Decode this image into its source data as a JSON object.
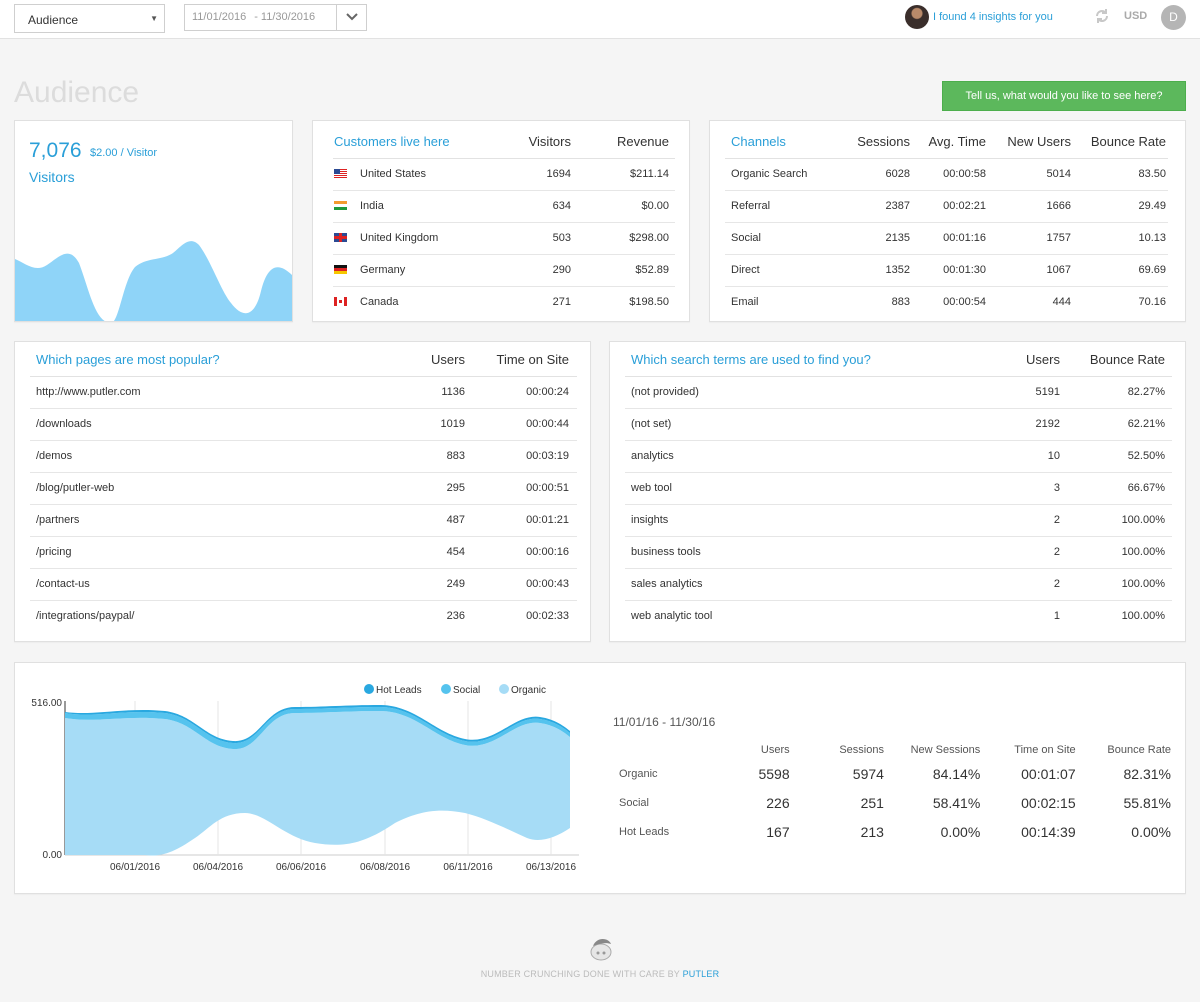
{
  "topbar": {
    "report_select": "Audience",
    "date_start": "11/01/2016",
    "date_end": "11/30/2016",
    "insights_text": "I found 4 insights for you",
    "currency": "USD",
    "user_initial": "D"
  },
  "page": {
    "title": "Audience",
    "feedback_button": "Tell us, what would you like to see here?"
  },
  "visitors": {
    "count": "7,076",
    "per_visitor": "$2.00 / Visitor",
    "label": "Visitors"
  },
  "countries": {
    "headers": [
      "Customers live here",
      "Visitors",
      "Revenue"
    ],
    "rows": [
      {
        "flag": "us-flag-icon",
        "name": "United States",
        "visitors": "1694",
        "revenue": "$211.14"
      },
      {
        "flag": "india-flag-icon",
        "name": "India",
        "visitors": "634",
        "revenue": "$0.00"
      },
      {
        "flag": "uk-flag-icon",
        "name": "United Kingdom",
        "visitors": "503",
        "revenue": "$298.00"
      },
      {
        "flag": "germany-flag-icon",
        "name": "Germany",
        "visitors": "290",
        "revenue": "$52.89"
      },
      {
        "flag": "canada-flag-icon",
        "name": "Canada",
        "visitors": "271",
        "revenue": "$198.50"
      }
    ]
  },
  "channels": {
    "headers": [
      "Channels",
      "Sessions",
      "Avg. Time",
      "New Users",
      "Bounce Rate"
    ],
    "rows": [
      {
        "name": "Organic Search",
        "sessions": "6028",
        "avg_time": "00:00:58",
        "new_users": "5014",
        "bounce": "83.50"
      },
      {
        "name": "Referral",
        "sessions": "2387",
        "avg_time": "00:02:21",
        "new_users": "1666",
        "bounce": "29.49"
      },
      {
        "name": "Social",
        "sessions": "2135",
        "avg_time": "00:01:16",
        "new_users": "1757",
        "bounce": "10.13"
      },
      {
        "name": "Direct",
        "sessions": "1352",
        "avg_time": "00:01:30",
        "new_users": "1067",
        "bounce": "69.69"
      },
      {
        "name": "Email",
        "sessions": "883",
        "avg_time": "00:00:54",
        "new_users": "444",
        "bounce": "70.16"
      }
    ]
  },
  "pages": {
    "headers": [
      "Which pages are most popular?",
      "Users",
      "Time on Site"
    ],
    "rows": [
      {
        "page": "http://www.putler.com",
        "users": "1136",
        "time": "00:00:24"
      },
      {
        "page": "/downloads",
        "users": "1019",
        "time": "00:00:44"
      },
      {
        "page": "/demos",
        "users": "883",
        "time": "00:03:19"
      },
      {
        "page": "/blog/putler-web",
        "users": "295",
        "time": "00:00:51"
      },
      {
        "page": "/partners",
        "users": "487",
        "time": "00:01:21"
      },
      {
        "page": "/pricing",
        "users": "454",
        "time": "00:00:16"
      },
      {
        "page": "/contact-us",
        "users": "249",
        "time": "00:00:43"
      },
      {
        "page": "/integrations/paypal/",
        "users": "236",
        "time": "00:02:33"
      }
    ]
  },
  "search_terms": {
    "headers": [
      "Which search terms are used to find you?",
      "Users",
      "Bounce Rate"
    ],
    "rows": [
      {
        "term": "(not provided)",
        "users": "5191",
        "bounce": "82.27%"
      },
      {
        "term": "(not set)",
        "users": "2192",
        "bounce": "62.21%"
      },
      {
        "term": "analytics",
        "users": "10",
        "bounce": "52.50%"
      },
      {
        "term": "web tool",
        "users": "3",
        "bounce": "66.67%"
      },
      {
        "term": "insights",
        "users": "2",
        "bounce": "100.00%"
      },
      {
        "term": "business tools",
        "users": "2",
        "bounce": "100.00%"
      },
      {
        "term": "sales analytics",
        "users": "2",
        "bounce": "100.00%"
      },
      {
        "term": "web analytic tool",
        "users": "1",
        "bounce": "100.00%"
      }
    ]
  },
  "summary": {
    "date_range": "11/01/16 - 11/30/16",
    "headers": [
      "",
      "Users",
      "Sessions",
      "New Sessions",
      "Time on Site",
      "Bounce Rate"
    ],
    "rows": [
      {
        "name": "Organic",
        "users": "5598",
        "sessions": "5974",
        "new_sessions": "84.14%",
        "time": "00:01:07",
        "bounce": "82.31%"
      },
      {
        "name": "Social",
        "users": "226",
        "sessions": "251",
        "new_sessions": "58.41%",
        "time": "00:02:15",
        "bounce": "55.81%"
      },
      {
        "name": "Hot Leads",
        "users": "167",
        "sessions": "213",
        "new_sessions": "0.00%",
        "time": "00:14:39",
        "bounce": "0.00%"
      }
    ]
  },
  "chart_data": {
    "type": "area",
    "x": [
      "06/01/2016",
      "06/04/2016",
      "06/06/2016",
      "06/08/2016",
      "06/11/2016",
      "06/13/2016"
    ],
    "ylim": [
      0.0,
      516.0
    ],
    "ytick_labels": [
      "516.00",
      "0.00"
    ],
    "legend_position": "top",
    "series": [
      {
        "name": "Hot Leads",
        "color": "#29a8e0"
      },
      {
        "name": "Social",
        "color": "#55c3ee"
      },
      {
        "name": "Organic",
        "color": "#a6dcf6"
      }
    ]
  },
  "footer": {
    "text": "NUMBER CRUNCHING DONE WITH CARE BY",
    "brand": "PUTLER"
  }
}
